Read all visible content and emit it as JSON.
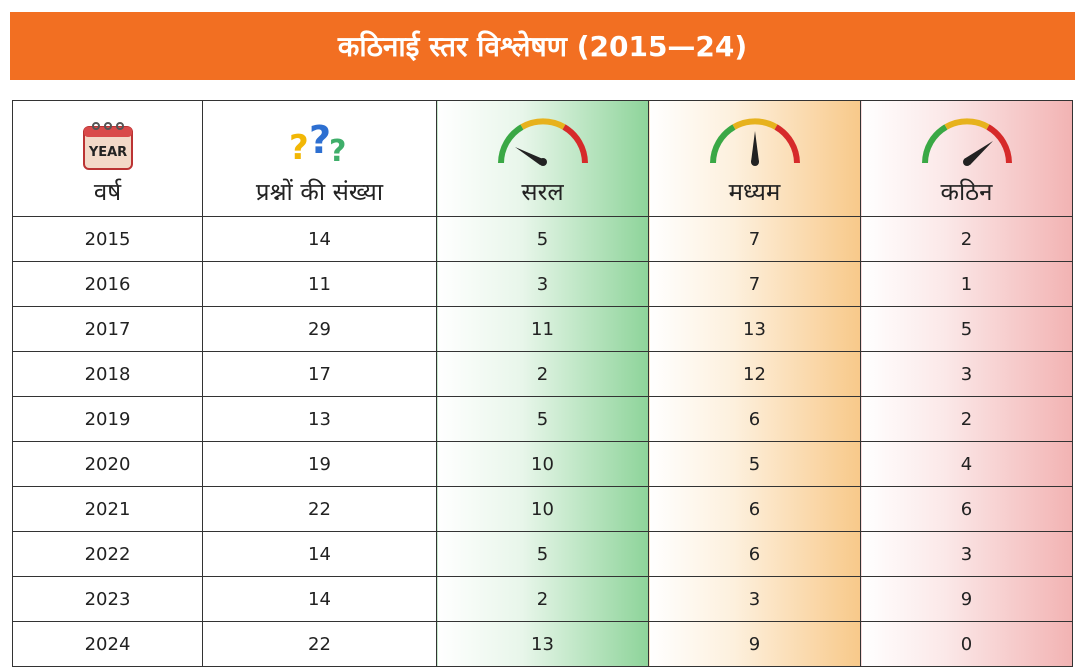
{
  "header": {
    "title": "कठिनाई स्तर विश्लेषण (2015—24)"
  },
  "table": {
    "icon_text": "YEAR",
    "columns": [
      "वर्ष",
      "प्रश्नों की संख्या",
      "सरल",
      "मध्यम",
      "कठिन"
    ],
    "rows": [
      [
        2015,
        14,
        5,
        7,
        2
      ],
      [
        2016,
        11,
        3,
        7,
        1
      ],
      [
        2017,
        29,
        11,
        13,
        5
      ],
      [
        2018,
        17,
        2,
        12,
        3
      ],
      [
        2019,
        13,
        5,
        6,
        2
      ],
      [
        2020,
        19,
        10,
        5,
        4
      ],
      [
        2021,
        22,
        10,
        6,
        6
      ],
      [
        2022,
        14,
        5,
        6,
        3
      ],
      [
        2023,
        14,
        2,
        3,
        9
      ],
      [
        2024,
        22,
        13,
        9,
        0
      ]
    ]
  }
}
